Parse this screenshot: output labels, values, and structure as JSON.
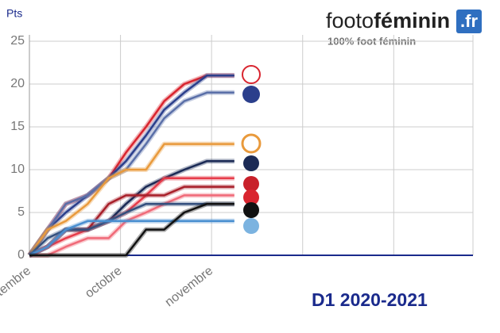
{
  "chart_data": {
    "type": "line",
    "y_label": "Pts",
    "brand": {
      "name_start": "footo",
      "name_bold": "féminin",
      "name_end": ".fr",
      "tagline": "100% foot féminin"
    },
    "caption": "D1 2020-2021",
    "xlim": [
      0,
      4.87
    ],
    "xticks": [
      {
        "value": 0,
        "label": "septembre"
      },
      {
        "value": 1,
        "label": "octobre"
      },
      {
        "value": 2,
        "label": "novembre"
      }
    ],
    "xgrid": [
      3,
      4,
      4.87
    ],
    "ylim": [
      0,
      25
    ],
    "yticks": [
      0,
      5,
      10,
      15,
      20,
      25
    ],
    "grid": true,
    "x": [
      0,
      0.2,
      0.4,
      0.64,
      0.87,
      1.06,
      1.28,
      1.48,
      1.7,
      1.95,
      2.25
    ],
    "series": [
      {
        "color": "#d9252f",
        "values": [
          0,
          3,
          6,
          7,
          9,
          12,
          15,
          18,
          20,
          21,
          21
        ]
      },
      {
        "color": "#2b3f8c",
        "values": [
          0,
          3,
          5,
          7,
          9,
          11,
          14,
          17,
          19,
          21,
          21
        ]
      },
      {
        "color": "#5a6fa8",
        "values": [
          0,
          3,
          6,
          7,
          9,
          10,
          13,
          16,
          18,
          19,
          19
        ]
      },
      {
        "color": "#e99a3c",
        "values": [
          0,
          3,
          4,
          6,
          9,
          10,
          10,
          13,
          13,
          13,
          13
        ]
      },
      {
        "color": "#1b2a55",
        "values": [
          0,
          1,
          3,
          3,
          4,
          6,
          8,
          9,
          10,
          11,
          11
        ]
      },
      {
        "color": "#e63c4a",
        "values": [
          0,
          1,
          2,
          3,
          4,
          5,
          7,
          9,
          9,
          9,
          9
        ]
      },
      {
        "color": "#a8202a",
        "values": [
          0,
          1,
          3,
          3,
          6,
          7,
          7,
          7,
          8,
          8,
          8
        ]
      },
      {
        "color": "#f06a78",
        "values": [
          0,
          0,
          1,
          2,
          2,
          4,
          5,
          6,
          7,
          7,
          7
        ]
      },
      {
        "color": "#34507e",
        "values": [
          0,
          2,
          3,
          3,
          4,
          5,
          6,
          6,
          6,
          6,
          6
        ]
      },
      {
        "color": "#4a8fd0",
        "values": [
          0,
          1,
          3,
          4,
          4,
          4,
          4,
          4,
          4,
          4,
          4
        ]
      },
      {
        "color": "#111111",
        "values": [
          0,
          0,
          0,
          0,
          0,
          0,
          3,
          3,
          5,
          6,
          6
        ]
      }
    ]
  }
}
